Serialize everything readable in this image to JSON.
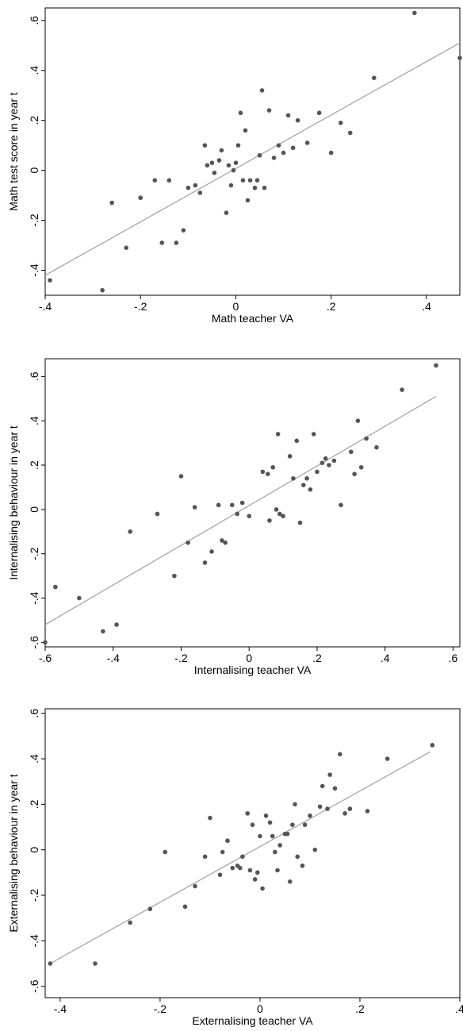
{
  "chart_data": [
    {
      "type": "scatter",
      "xlabel": "Math teacher VA",
      "ylabel": "Math test score in year t",
      "xlim": [
        -0.4,
        0.47
      ],
      "ylim": [
        -0.5,
        0.65
      ],
      "xticks": [
        -0.4,
        -0.2,
        0,
        0.2,
        0.4
      ],
      "xtick_labels": [
        "-.4",
        "-.2",
        "0",
        ".2",
        ".4"
      ],
      "yticks": [
        -0.4,
        -0.2,
        0,
        0.2,
        0.4,
        0.6
      ],
      "ytick_labels": [
        "-.4",
        "-.2",
        "0",
        ".2",
        ".4",
        ".6"
      ],
      "grid": false,
      "marker_color": "#555555",
      "fit_color": "#a0a0a0",
      "fit_line": {
        "x": [
          -0.4,
          0.47
        ],
        "y": [
          -0.42,
          0.51
        ]
      },
      "points": [
        [
          -0.39,
          -0.44
        ],
        [
          -0.28,
          -0.48
        ],
        [
          -0.26,
          -0.13
        ],
        [
          -0.23,
          -0.31
        ],
        [
          -0.2,
          -0.11
        ],
        [
          -0.17,
          -0.04
        ],
        [
          -0.155,
          -0.29
        ],
        [
          -0.14,
          -0.04
        ],
        [
          -0.125,
          -0.29
        ],
        [
          -0.11,
          -0.24
        ],
        [
          -0.1,
          -0.07
        ],
        [
          -0.085,
          -0.06
        ],
        [
          -0.075,
          -0.09
        ],
        [
          -0.065,
          0.1
        ],
        [
          -0.06,
          0.02
        ],
        [
          -0.05,
          0.03
        ],
        [
          -0.045,
          -0.01
        ],
        [
          -0.035,
          0.04
        ],
        [
          -0.03,
          0.08
        ],
        [
          -0.02,
          -0.17
        ],
        [
          -0.015,
          0.02
        ],
        [
          -0.01,
          -0.06
        ],
        [
          -0.005,
          0.0
        ],
        [
          0.0,
          0.03
        ],
        [
          0.005,
          0.1
        ],
        [
          0.01,
          0.23
        ],
        [
          0.015,
          -0.04
        ],
        [
          0.02,
          0.16
        ],
        [
          0.025,
          -0.12
        ],
        [
          0.03,
          -0.04
        ],
        [
          0.04,
          -0.07
        ],
        [
          0.045,
          -0.04
        ],
        [
          0.05,
          0.06
        ],
        [
          0.055,
          0.32
        ],
        [
          0.06,
          -0.07
        ],
        [
          0.07,
          0.24
        ],
        [
          0.08,
          0.05
        ],
        [
          0.09,
          0.1
        ],
        [
          0.1,
          0.07
        ],
        [
          0.11,
          0.22
        ],
        [
          0.12,
          0.09
        ],
        [
          0.13,
          0.2
        ],
        [
          0.15,
          0.11
        ],
        [
          0.175,
          0.23
        ],
        [
          0.2,
          0.07
        ],
        [
          0.22,
          0.19
        ],
        [
          0.24,
          0.15
        ],
        [
          0.29,
          0.37
        ],
        [
          0.375,
          0.63
        ],
        [
          0.47,
          0.45
        ]
      ]
    },
    {
      "type": "scatter",
      "xlabel": "Internalising teacher VA",
      "ylabel": "Internalising behaviour in year t",
      "xlim": [
        -0.6,
        0.62
      ],
      "ylim": [
        -0.62,
        0.68
      ],
      "xticks": [
        -0.6,
        -0.4,
        -0.2,
        0,
        0.2,
        0.4,
        0.6
      ],
      "xtick_labels": [
        "-.6",
        "-.4",
        "-.2",
        "0",
        ".2",
        ".4",
        ".6"
      ],
      "yticks": [
        -0.6,
        -0.4,
        -0.2,
        0,
        0.2,
        0.4,
        0.6
      ],
      "ytick_labels": [
        "-.6",
        "-.4",
        "-.2",
        "0",
        ".2",
        ".4",
        ".6"
      ],
      "grid": false,
      "marker_color": "#555555",
      "fit_color": "#a0a0a0",
      "fit_line": {
        "x": [
          -0.6,
          0.55
        ],
        "y": [
          -0.52,
          0.51
        ]
      },
      "points": [
        [
          -0.6,
          -0.6
        ],
        [
          -0.57,
          -0.35
        ],
        [
          -0.5,
          -0.4
        ],
        [
          -0.43,
          -0.55
        ],
        [
          -0.39,
          -0.52
        ],
        [
          -0.35,
          -0.1
        ],
        [
          -0.27,
          -0.02
        ],
        [
          -0.22,
          -0.3
        ],
        [
          -0.2,
          0.15
        ],
        [
          -0.18,
          -0.15
        ],
        [
          -0.16,
          0.01
        ],
        [
          -0.13,
          -0.24
        ],
        [
          -0.11,
          -0.19
        ],
        [
          -0.09,
          0.02
        ],
        [
          -0.08,
          -0.14
        ],
        [
          -0.07,
          -0.15
        ],
        [
          -0.05,
          0.02
        ],
        [
          -0.035,
          -0.02
        ],
        [
          -0.02,
          0.03
        ],
        [
          0.0,
          -0.03
        ],
        [
          0.04,
          0.17
        ],
        [
          0.055,
          0.16
        ],
        [
          0.06,
          -0.05
        ],
        [
          0.07,
          0.19
        ],
        [
          0.08,
          0.0
        ],
        [
          0.085,
          0.34
        ],
        [
          0.09,
          -0.02
        ],
        [
          0.1,
          -0.03
        ],
        [
          0.12,
          0.24
        ],
        [
          0.13,
          0.14
        ],
        [
          0.14,
          0.31
        ],
        [
          0.15,
          -0.06
        ],
        [
          0.16,
          0.11
        ],
        [
          0.17,
          0.14
        ],
        [
          0.18,
          0.09
        ],
        [
          0.19,
          0.34
        ],
        [
          0.2,
          0.17
        ],
        [
          0.215,
          0.21
        ],
        [
          0.225,
          0.23
        ],
        [
          0.235,
          0.2
        ],
        [
          0.25,
          0.22
        ],
        [
          0.27,
          0.02
        ],
        [
          0.3,
          0.26
        ],
        [
          0.31,
          0.16
        ],
        [
          0.32,
          0.4
        ],
        [
          0.33,
          0.19
        ],
        [
          0.345,
          0.32
        ],
        [
          0.375,
          0.28
        ],
        [
          0.45,
          0.54
        ],
        [
          0.55,
          0.65
        ]
      ]
    },
    {
      "type": "scatter",
      "xlabel": "Externalising teacher VA",
      "ylabel": "Externalising behaviour in year t",
      "xlim": [
        -0.43,
        0.4
      ],
      "ylim": [
        -0.65,
        0.62
      ],
      "xticks": [
        -0.4,
        -0.2,
        0,
        0.2,
        0.4
      ],
      "xtick_labels": [
        "-.4",
        "-.2",
        "0",
        ".2",
        ".4"
      ],
      "yticks": [
        -0.6,
        -0.4,
        -0.2,
        0,
        0.2,
        0.4,
        0.6
      ],
      "ytick_labels": [
        "-.6",
        "-.4",
        "-.2",
        "0",
        ".2",
        ".4",
        ".6"
      ],
      "grid": false,
      "marker_color": "#555555",
      "fit_color": "#a0a0a0",
      "fit_line": {
        "x": [
          -0.42,
          0.34
        ],
        "y": [
          -0.5,
          0.43
        ]
      },
      "points": [
        [
          -0.42,
          -0.5
        ],
        [
          -0.33,
          -0.5
        ],
        [
          -0.26,
          -0.32
        ],
        [
          -0.22,
          -0.26
        ],
        [
          -0.19,
          -0.01
        ],
        [
          -0.15,
          -0.25
        ],
        [
          -0.13,
          -0.16
        ],
        [
          -0.11,
          -0.03
        ],
        [
          -0.1,
          0.14
        ],
        [
          -0.08,
          -0.11
        ],
        [
          -0.075,
          -0.01
        ],
        [
          -0.065,
          0.04
        ],
        [
          -0.055,
          -0.08
        ],
        [
          -0.045,
          -0.07
        ],
        [
          -0.04,
          -0.08
        ],
        [
          -0.035,
          -0.03
        ],
        [
          -0.025,
          0.16
        ],
        [
          -0.02,
          -0.09
        ],
        [
          -0.015,
          0.11
        ],
        [
          -0.01,
          -0.13
        ],
        [
          -0.005,
          -0.1
        ],
        [
          0.0,
          0.06
        ],
        [
          0.005,
          -0.17
        ],
        [
          0.012,
          0.15
        ],
        [
          0.02,
          0.12
        ],
        [
          0.025,
          0.06
        ],
        [
          0.03,
          -0.01
        ],
        [
          0.035,
          -0.09
        ],
        [
          0.04,
          0.02
        ],
        [
          0.05,
          0.07
        ],
        [
          0.055,
          0.07
        ],
        [
          0.06,
          -0.14
        ],
        [
          0.065,
          0.11
        ],
        [
          0.07,
          0.2
        ],
        [
          0.075,
          -0.03
        ],
        [
          0.085,
          -0.07
        ],
        [
          0.09,
          0.11
        ],
        [
          0.1,
          0.15
        ],
        [
          0.11,
          0.0
        ],
        [
          0.12,
          0.19
        ],
        [
          0.125,
          0.28
        ],
        [
          0.135,
          0.18
        ],
        [
          0.14,
          0.33
        ],
        [
          0.15,
          0.27
        ],
        [
          0.16,
          0.42
        ],
        [
          0.17,
          0.16
        ],
        [
          0.18,
          0.18
        ],
        [
          0.215,
          0.17
        ],
        [
          0.255,
          0.4
        ],
        [
          0.345,
          0.46
        ]
      ]
    }
  ]
}
